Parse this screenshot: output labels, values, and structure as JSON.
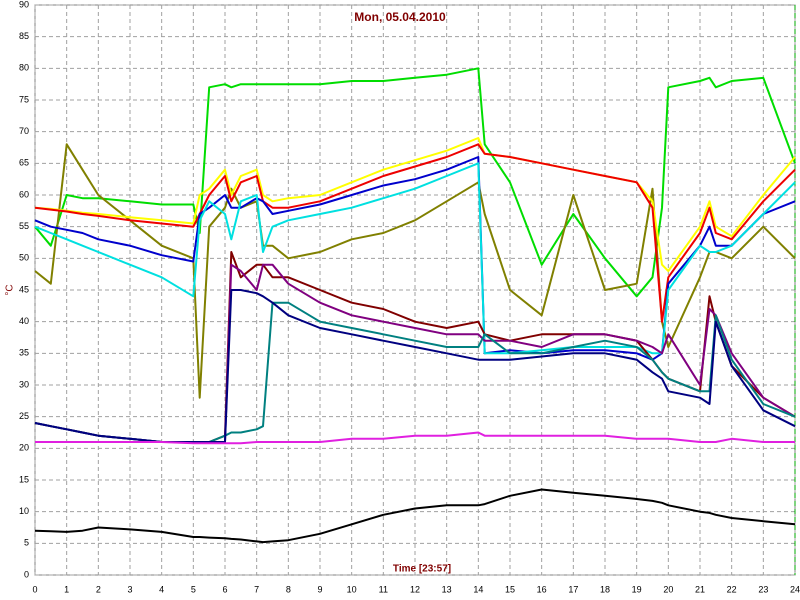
{
  "chart_data": {
    "type": "line",
    "title": "Mon, 05.04.2010",
    "y_label": "°C",
    "x_label": "Time [23:57]",
    "x": [
      0,
      0.5,
      1,
      1.5,
      2,
      3,
      4,
      5,
      5.2,
      5.5,
      6,
      6.2,
      6.5,
      7,
      7.2,
      7.5,
      8,
      9,
      10,
      11,
      12,
      13,
      14,
      14.2,
      15,
      16,
      17,
      18,
      19,
      19.5,
      19.8,
      20,
      21,
      21.3,
      21.5,
      22,
      23,
      24
    ],
    "xlim": [
      0,
      24
    ],
    "xticks": [
      0,
      1,
      2,
      3,
      4,
      5,
      6,
      7,
      8,
      9,
      10,
      11,
      12,
      13,
      14,
      15,
      16,
      17,
      18,
      19,
      20,
      21,
      22,
      23,
      24
    ],
    "ylim": [
      0,
      90
    ],
    "yticks": [
      0,
      5,
      10,
      15,
      20,
      25,
      30,
      35,
      40,
      45,
      50,
      55,
      60,
      65,
      70,
      75,
      80,
      85,
      90
    ],
    "grid": true,
    "series": [
      {
        "color": "#00dd00",
        "values": [
          55,
          52,
          60,
          59.5,
          59.5,
          59,
          58.5,
          58.5,
          54,
          77,
          77.5,
          77,
          77.5,
          77.5,
          77.5,
          77.5,
          77.5,
          77.5,
          78,
          78,
          78.5,
          79,
          80,
          68,
          62,
          49,
          57,
          50,
          44,
          47,
          58,
          77,
          78,
          78.5,
          77,
          78,
          78.5,
          65
        ]
      },
      {
        "color": "#808000",
        "values": [
          48,
          46,
          68,
          64,
          60,
          56,
          52,
          50,
          28,
          55,
          58,
          61,
          58,
          59,
          52,
          52,
          50,
          51,
          53,
          54,
          56,
          59,
          62,
          57,
          45,
          41,
          60,
          45,
          46,
          61,
          40,
          36,
          47,
          51,
          51,
          50,
          55,
          50
        ]
      },
      {
        "color": "#ffff00",
        "values": [
          58,
          57.8,
          57.5,
          57.2,
          57,
          56.5,
          56,
          55.5,
          60,
          61,
          64,
          60,
          63,
          64,
          60,
          59,
          59.5,
          60,
          62,
          64,
          65.5,
          67,
          69,
          66.5,
          66,
          65,
          64,
          63,
          62,
          59,
          49,
          48,
          55,
          59,
          55,
          53.5,
          60,
          66
        ]
      },
      {
        "color": "#ee0000",
        "values": [
          58,
          57.7,
          57.4,
          57,
          56.7,
          56,
          55.5,
          55,
          57,
          60,
          63,
          59,
          62,
          63,
          59,
          58,
          58,
          59,
          61,
          63,
          64.5,
          66,
          68,
          66.5,
          66,
          65,
          64,
          63,
          62,
          58,
          40,
          47,
          54,
          58,
          54,
          53,
          59,
          64
        ]
      },
      {
        "color": "#0000cc",
        "values": [
          56,
          55,
          54.5,
          54,
          53,
          52,
          50.5,
          49.5,
          57,
          58,
          60,
          58,
          58,
          59.5,
          59,
          57,
          57.5,
          58.5,
          60,
          61.5,
          62.5,
          64,
          66,
          35,
          35.5,
          35,
          35.5,
          35.5,
          35,
          34,
          35,
          46,
          52,
          55,
          52,
          52,
          57,
          59
        ]
      },
      {
        "color": "#00e0e0",
        "values": [
          55,
          54,
          53,
          52,
          51,
          49,
          47,
          44,
          56,
          59,
          57,
          53,
          59,
          60,
          51,
          55,
          56,
          57,
          58,
          59.5,
          61,
          63,
          65,
          35,
          35,
          35.5,
          36,
          36,
          36,
          35,
          35,
          45,
          52,
          51,
          51,
          52,
          57,
          62
        ]
      },
      {
        "color": "#800000",
        "values": [
          24,
          23.5,
          23,
          22.5,
          22,
          21.5,
          21,
          21,
          21,
          21,
          22,
          51,
          47,
          49,
          49,
          47,
          47,
          45,
          43,
          42,
          40,
          39,
          40,
          38,
          37,
          38,
          38,
          38,
          37,
          34,
          32,
          31,
          29,
          44,
          40,
          33,
          28,
          25
        ]
      },
      {
        "color": "#800080",
        "values": [
          24,
          23.5,
          23,
          22.5,
          22,
          21.5,
          21,
          21,
          21,
          21,
          21,
          49,
          48,
          45,
          49,
          49,
          46,
          43,
          41,
          40,
          39,
          38,
          38,
          37,
          37,
          36,
          38,
          38,
          37,
          36,
          35,
          38,
          30,
          42,
          41,
          35,
          28,
          25
        ]
      },
      {
        "color": "#008080",
        "values": [
          24,
          23.5,
          23,
          22.5,
          22,
          21.5,
          21,
          21,
          21,
          21,
          22,
          22.5,
          22.5,
          23,
          23.5,
          43,
          43,
          40,
          39,
          38,
          37,
          36,
          36,
          38,
          35,
          35,
          36,
          37,
          36,
          34,
          32,
          31,
          29,
          29,
          41,
          34,
          27,
          25
        ]
      },
      {
        "color": "#000080",
        "values": [
          24,
          23.5,
          23,
          22.5,
          22,
          21.5,
          21,
          21,
          21,
          21,
          21,
          45,
          45,
          44.5,
          44,
          43,
          41,
          39,
          38,
          37,
          36,
          35,
          34,
          34,
          34,
          34.5,
          35,
          35,
          34,
          32,
          31,
          29,
          28,
          27,
          40,
          33,
          26,
          23.5
        ]
      },
      {
        "color": "#e020e0",
        "values": [
          21,
          21,
          21,
          21,
          21,
          21,
          21,
          20.8,
          20.8,
          20.8,
          20.8,
          20.8,
          20.8,
          21,
          21,
          21,
          21,
          21,
          21.5,
          21.5,
          22,
          22,
          22.5,
          22,
          22,
          22,
          22,
          22,
          21.5,
          21.5,
          21.5,
          21.5,
          21,
          21,
          21,
          21.5,
          21,
          21
        ]
      },
      {
        "color": "#000000",
        "values": [
          7,
          6.9,
          6.8,
          7,
          7.5,
          7.2,
          6.8,
          6,
          6,
          5.9,
          5.8,
          5.7,
          5.6,
          5.3,
          5.2,
          5.3,
          5.5,
          6.5,
          8,
          9.5,
          10.5,
          11,
          11,
          11.2,
          12.5,
          13.5,
          13,
          12.5,
          12,
          11.7,
          11.4,
          11,
          10,
          9.8,
          9.5,
          9,
          8.5,
          8
        ]
      }
    ]
  }
}
